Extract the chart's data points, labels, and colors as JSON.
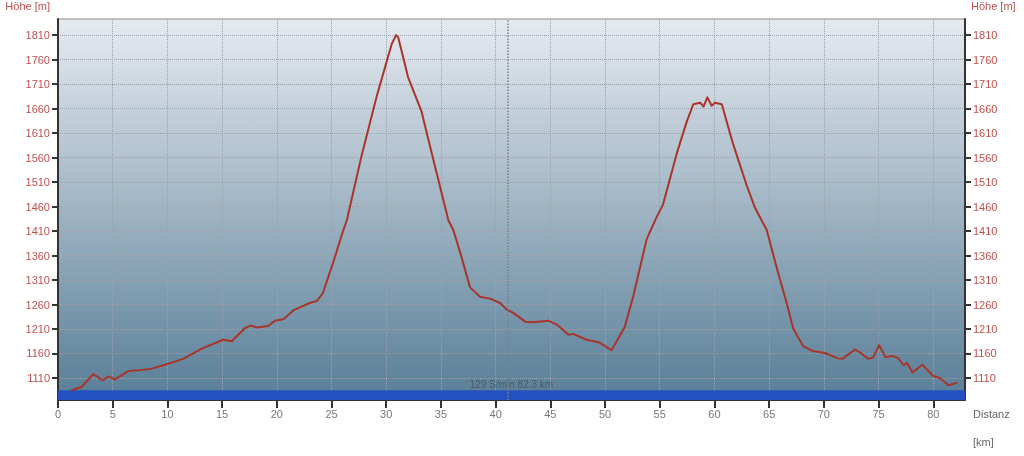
{
  "chart_data": {
    "type": "line",
    "xlabel": "Distanz [km]",
    "ylabel": "Höhe [m]",
    "y2label": "Höhe [m]",
    "x": [
      1.25,
      2.17,
      3.23,
      4.08,
      4.6,
      5.2,
      6.43,
      7.5,
      8.56,
      9.93,
      11.45,
      13.13,
      15.1,
      15.88,
      17.1,
      17.6,
      18.16,
      19.2,
      19.84,
      20.6,
      21.5,
      23.0,
      23.65,
      24.2,
      25.17,
      26.08,
      26.4,
      27.76,
      29.13,
      30.5,
      30.9,
      31.1,
      32.0,
      33.2,
      34.46,
      35.68,
      36.13,
      36.75,
      37.66,
      38.57,
      39.5,
      40.4,
      41.0,
      41.6,
      42.7,
      43.45,
      44.8,
      45.6,
      46.65,
      47.1,
      48.3,
      49.4,
      50.6,
      51.8,
      52.6,
      53.8,
      54.7,
      55.3,
      56.55,
      57.46,
      58.07,
      58.7,
      59.0,
      59.35,
      59.75,
      60.05,
      60.67,
      61.7,
      62.95,
      63.7,
      64.3,
      64.78,
      65.7,
      66.6,
      67.2,
      68.1,
      69.0,
      70.1,
      71.3,
      71.7,
      72.85,
      73.3,
      74.07,
      74.5,
      75.05,
      75.66,
      76.2,
      76.7,
      77.3,
      77.6,
      78.1,
      79.0,
      80.0,
      80.6,
      81.4,
      82.15
    ],
    "series": [
      {
        "color": "#a8352b",
        "values": [
          1085,
          1092,
          1118,
          1105,
          1113,
          1107,
          1124,
          1126,
          1129,
          1138,
          1149,
          1170,
          1188,
          1185,
          1212,
          1217,
          1213,
          1216,
          1227,
          1230,
          1248,
          1263,
          1267,
          1283,
          1347,
          1412,
          1432,
          1565,
          1685,
          1792,
          1810,
          1805,
          1724,
          1656,
          1542,
          1432,
          1412,
          1367,
          1295,
          1276,
          1272,
          1263,
          1250,
          1243,
          1225,
          1224,
          1227,
          1219,
          1198,
          1200,
          1188,
          1183,
          1167,
          1214,
          1279,
          1393,
          1438,
          1464,
          1568,
          1633,
          1669,
          1672,
          1664,
          1683,
          1666,
          1672,
          1669,
          1588,
          1503,
          1458,
          1432,
          1412,
          1334,
          1263,
          1211,
          1175,
          1165,
          1161,
          1150,
          1149,
          1168,
          1162,
          1149,
          1152,
          1177,
          1152,
          1155,
          1152,
          1136,
          1141,
          1121,
          1137,
          1114,
          1110,
          1095,
          1100
        ]
      }
    ],
    "xlim": [
      0,
      82.9
    ],
    "xticks": [
      0,
      5,
      10,
      15,
      20,
      25,
      30,
      35,
      40,
      45,
      50,
      55,
      60,
      65,
      70,
      75,
      80
    ],
    "ylim": [
      1065,
      1843
    ],
    "yticks": [
      1110,
      1160,
      1210,
      1260,
      1310,
      1360,
      1410,
      1460,
      1510,
      1560,
      1610,
      1660,
      1710,
      1760,
      1810
    ],
    "y2lim": [
      1065,
      1843
    ],
    "y2ticks": [
      1110,
      1160,
      1210,
      1260,
      1310,
      1360,
      1410,
      1460,
      1510,
      1560,
      1610,
      1660,
      1710,
      1760,
      1810
    ],
    "ref_lines": [
      {
        "axis": "x",
        "value": 41.1,
        "color": "#7a8088",
        "line_style": "dotted"
      }
    ],
    "bands": [
      {
        "axis": "y",
        "from": 1065,
        "to": 1085,
        "label": "129 S/min 82.3 km",
        "color": "#2450c0"
      }
    ],
    "grid": true,
    "marker": "none",
    "line_style": "solid"
  }
}
